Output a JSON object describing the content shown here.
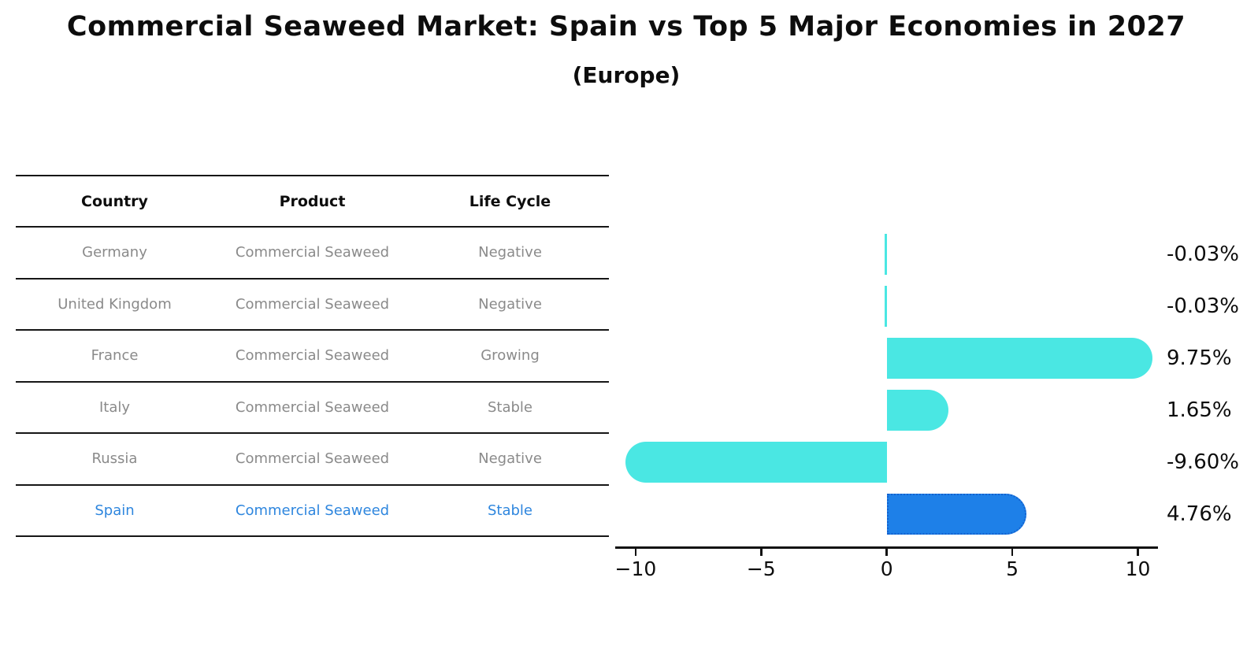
{
  "page": {
    "background": "#ffffff"
  },
  "header": {
    "title": "Commercial Seaweed Market: Spain vs Top 5 Major Economies in 2027",
    "subtitle": "(Europe)"
  },
  "table": {
    "headers": [
      "Country",
      "Product",
      "Life Cycle"
    ],
    "rows": [
      {
        "country": "Germany",
        "product": "Commercial Seaweed",
        "life_cycle": "Negative",
        "highlighted": false
      },
      {
        "country": "United Kingdom",
        "product": "Commercial Seaweed",
        "life_cycle": "Negative",
        "highlighted": false
      },
      {
        "country": "France",
        "product": "Commercial Seaweed",
        "life_cycle": "Growing",
        "highlighted": false
      },
      {
        "country": "Italy",
        "product": "Commercial Seaweed",
        "life_cycle": "Stable",
        "highlighted": false
      },
      {
        "country": "Russia",
        "product": "Commercial Seaweed",
        "life_cycle": "Negative",
        "highlighted": false
      },
      {
        "country": "Spain",
        "product": "Commercial Seaweed",
        "life_cycle": "Stable",
        "highlighted": true
      }
    ],
    "text_color": "#8a8a8a",
    "highlight_text_color": "#2e86de"
  },
  "chart_data": {
    "type": "bar",
    "orientation": "horizontal",
    "title": "Commercial Seaweed Market: Spain vs Top 5 Major Economies in 2027",
    "subtitle": "(Europe)",
    "categories": [
      "Germany",
      "United Kingdom",
      "France",
      "Italy",
      "Russia",
      "Spain"
    ],
    "values": [
      -0.03,
      -0.03,
      9.75,
      1.65,
      -9.6,
      4.76
    ],
    "value_labels": [
      "-0.03%",
      "-0.03%",
      "9.75%",
      "1.65%",
      "-9.60%",
      "4.76%"
    ],
    "x_ticks": [
      -10,
      -5,
      0,
      5,
      10
    ],
    "x_tick_labels": [
      "−10",
      "−5",
      "0",
      "5",
      "10"
    ],
    "xlim": [
      -11.0,
      10.8
    ],
    "grid": false,
    "legend": null,
    "bar_color": "#4ae7e3",
    "highlight_index": 5,
    "highlight_color": "#1e80e8",
    "highlight_border_color": "#1462cf",
    "axis_color": "#111111",
    "label_color": "#0d0d0d"
  }
}
